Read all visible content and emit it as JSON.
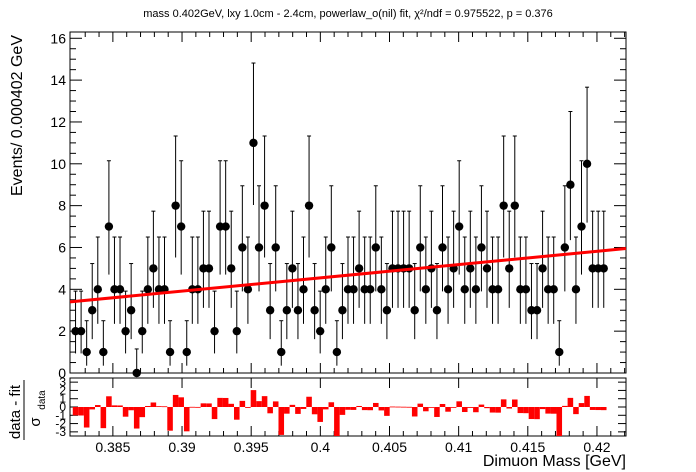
{
  "chart_data": [
    {
      "type": "scatter",
      "panel": "main",
      "title": "mass 0.402GeV, lxy 1.0cm - 2.4cm, powerlaw_o(nil) fit, χ²/ndf = 0.975522, p = 0.376",
      "ylabel": "Events/ 0.000402 GeV",
      "xlim": [
        0.3819,
        0.4221
      ],
      "ylim": [
        0,
        16.3
      ],
      "x_ticks": [
        0.385,
        0.39,
        0.395,
        0.4,
        0.405,
        0.41,
        0.415,
        0.42
      ],
      "x_tick_labels": [
        "0.385",
        "0.39",
        "0.395",
        "0.4",
        "0.405",
        "0.41",
        "0.415",
        "0.42"
      ],
      "y_ticks": [
        0,
        2,
        4,
        6,
        8,
        10,
        12,
        14,
        16
      ],
      "y_tick_labels": [
        "0",
        "2",
        "4",
        "6",
        "8",
        "10",
        "12",
        "14",
        "16"
      ],
      "bin_start": 0.3821,
      "bin_width": 0.000402,
      "counts": [
        2,
        2,
        1,
        3,
        4,
        1,
        7,
        4,
        4,
        2,
        3,
        0,
        2,
        4,
        5,
        4,
        4,
        1,
        8,
        7,
        1,
        4,
        4,
        5,
        5,
        2,
        7,
        7,
        5,
        2,
        6,
        4,
        11,
        6,
        8,
        3,
        6,
        1,
        3,
        5,
        3,
        4,
        8,
        3,
        2,
        4,
        6,
        1,
        3,
        4,
        4,
        5,
        4,
        4,
        6,
        4,
        3,
        5,
        5,
        5,
        5,
        3,
        6,
        4,
        5,
        3,
        6,
        4,
        5,
        7,
        4,
        5,
        4,
        6,
        5,
        4,
        4,
        8,
        5,
        8,
        4,
        4,
        3,
        3,
        5,
        4,
        4,
        1,
        6,
        9,
        4,
        7,
        10,
        5,
        5,
        5
      ],
      "fit": {
        "name": "powerlaw_o(nil)",
        "x": [
          0.3819,
          0.4221
        ],
        "y": [
          3.4,
          5.95
        ],
        "color": "#ff0000"
      },
      "marker_color": "#000000",
      "grid": false
    },
    {
      "type": "bar",
      "panel": "pull",
      "ylabel": "data - fit / σ_data",
      "ylabel_num": "data - fit",
      "ylabel_den": "σ",
      "ylabel_den_sub": "data",
      "ylim": [
        -3.5,
        3.5
      ],
      "y_tick_labels": [
        "-3",
        "-2",
        "-1",
        "0",
        "1",
        "2",
        "3"
      ],
      "y_ticks": [
        -3,
        -2,
        -1,
        0,
        1,
        2,
        3
      ],
      "xlabel": "Dimuon Mass [GeV]",
      "x_ticks": [
        0.385,
        0.39,
        0.395,
        0.4,
        0.405,
        0.41,
        0.415,
        0.42
      ],
      "x_tick_labels": [
        "0.385",
        "0.39",
        "0.395",
        "0.4",
        "0.405",
        "0.41",
        "0.415",
        "0.42"
      ],
      "bar_color": "#ff0000"
    }
  ]
}
